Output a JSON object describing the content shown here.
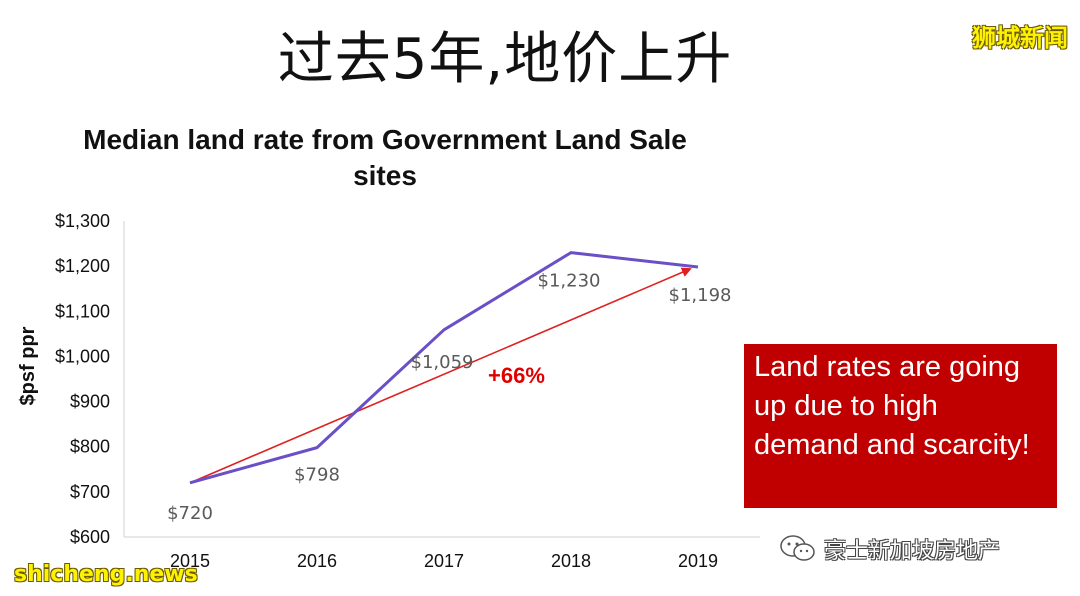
{
  "slide": {
    "title": "过去5年,地价上升",
    "watermark_top": "狮城新闻",
    "watermark_bottom": "shicheng.news",
    "callout_text": "Land rates are going up due to high demand and scarcity!",
    "wechat_label": "豪士新加坡房地产"
  },
  "chart_data": {
    "type": "line",
    "title": "Median land rate from Government Land Sale sites",
    "xlabel": "",
    "ylabel": "$psf ppr",
    "categories": [
      "2015",
      "2016",
      "2017",
      "2018",
      "2019"
    ],
    "series": [
      {
        "name": "",
        "values": [
          720,
          798,
          1059,
          1230,
          1198
        ],
        "color": "#6a4fc7"
      }
    ],
    "data_labels": [
      "$720",
      "$798",
      "$1,059",
      "$1,230",
      "$1,198"
    ],
    "ylim": [
      600,
      1300
    ],
    "yticks": [
      600,
      700,
      800,
      900,
      1000,
      1100,
      1200,
      1300
    ],
    "ytick_labels": [
      "$600",
      "$700",
      "$800",
      "$900",
      "$1,000",
      "$1,100",
      "$1,200",
      "$1,300"
    ],
    "grid": false,
    "trend": {
      "from": 720,
      "to": 1198,
      "label": "+66%",
      "color": "#e02020"
    }
  }
}
